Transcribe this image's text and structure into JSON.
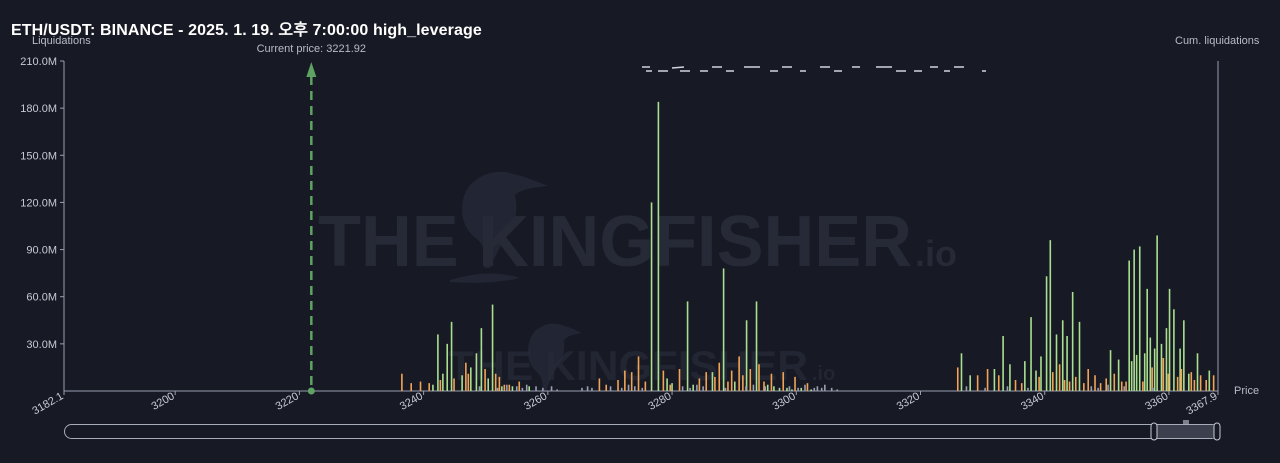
{
  "header": {
    "title": "ETH/USDT: BINANCE - 2025. 1. 19. 오후 7:00:00 high_leverage"
  },
  "watermark": {
    "brand": "THE KINGFISHER",
    "suffix": ".io"
  },
  "colors": {
    "background": "#171924",
    "long_bar": "#a9e08f",
    "short_bar": "#f2a454",
    "current_price_line": "#5fa363",
    "axis": "#9a9fb0"
  },
  "chart_data": {
    "type": "bar",
    "ylabel": "Liquidations",
    "y2label": "Cum. liquidations",
    "xlabel": "Price",
    "xlim": [
      3182.1,
      3367.9
    ],
    "ylim": [
      0,
      210
    ],
    "y_unit": "M",
    "y_ticks": [
      "210.0M",
      "180.0M",
      "150.0M",
      "120.0M",
      "90.0M",
      "60.0M",
      "30.0M"
    ],
    "y_tick_values": [
      210,
      180,
      150,
      120,
      90,
      60,
      30
    ],
    "x_ticks": [
      "3182.1",
      "3200",
      "3220",
      "3240",
      "3260",
      "3280",
      "3300",
      "3320",
      "3340",
      "3360",
      "3367.9"
    ],
    "x_tick_values": [
      3182.1,
      3200,
      3220,
      3240,
      3260,
      3280,
      3300,
      3320,
      3340,
      3360,
      3367.9
    ],
    "current_price_label": "Current price: 3221.92",
    "current_price": 3221.92,
    "grid": false,
    "series": [
      {
        "color": "#a9e08f",
        "x": [
          3241.5,
          3242.3,
          3243.1,
          3243.8,
          3244.5,
          3246.2,
          3247.6,
          3248.5,
          3249.3,
          3250.4,
          3251.1,
          3252.6,
          3254.3,
          3257.0,
          3276.7,
          3277.8,
          3279.2,
          3280.0,
          3282.5,
          3283.4,
          3286.5,
          3288.3,
          3290.1,
          3292.0,
          3293.6,
          3295.4,
          3296.4,
          3297.3,
          3298.5,
          3299.3,
          3300.8,
          3302.4,
          3326.6,
          3328.0,
          3331.9,
          3333.3,
          3334.4,
          3336.8,
          3337.8,
          3338.6,
          3339.4,
          3340.3,
          3340.9,
          3341.9,
          3342.9,
          3343.6,
          3344.5,
          3345.6,
          3350.6,
          3351.9,
          3353.6,
          3354.0,
          3354.4,
          3354.8,
          3355.3,
          3356.1,
          3356.5,
          3357.0,
          3357.7,
          3358.1,
          3358.8,
          3359.6,
          3360.1,
          3360.8,
          3361.8,
          3362.4,
          3363.2,
          3364.6,
          3366.5
        ],
        "values": [
          4,
          36,
          11,
          30,
          44,
          10,
          15,
          24,
          40,
          8,
          55,
          3,
          3,
          3,
          120,
          184,
          8,
          5,
          57,
          4,
          12,
          78,
          6,
          45,
          57,
          4,
          3,
          2,
          2,
          1,
          2,
          1,
          24,
          10,
          14,
          35,
          17,
          19,
          47,
          13,
          22,
          73,
          96,
          36,
          45,
          35,
          63,
          44,
          26,
          20,
          83,
          19,
          90,
          23,
          92,
          24,
          65,
          34,
          27,
          99,
          30,
          40,
          65,
          52,
          27,
          45,
          11,
          24,
          13
        ]
      },
      {
        "color": "#f2a454",
        "x": [
          3236.5,
          3238.0,
          3239.5,
          3240.9,
          3242.7,
          3244.9,
          3246.8,
          3247.2,
          3249.9,
          3251.6,
          3252.2,
          3253.0,
          3253.8,
          3255.4,
          3268.3,
          3269.4,
          3271.3,
          3272.4,
          3273.5,
          3274.6,
          3275.7,
          3278.6,
          3279.7,
          3281.2,
          3284.4,
          3285.5,
          3286.9,
          3287.6,
          3289.0,
          3289.6,
          3290.8,
          3291.4,
          3292.6,
          3294.0,
          3294.8,
          3296.0,
          3297.9,
          3299.8,
          3301.8,
          3326.0,
          3329.2,
          3330.8,
          3332.6,
          3335.3,
          3336.3,
          3339.1,
          3341.3,
          3342.4,
          3343.2,
          3344.0,
          3345.0,
          3346.3,
          3347.0,
          3348.1,
          3349.0,
          3349.9,
          3351.2,
          3352.4,
          3353.1,
          3355.8,
          3357.3,
          3359.1,
          3359.9,
          3361.4,
          3362.0,
          3363.6,
          3364.1,
          3365.1,
          3366.0,
          3367.2
        ],
        "values": [
          11,
          5,
          6,
          5,
          7,
          8,
          18,
          11,
          14,
          11,
          9,
          4,
          4,
          6,
          8,
          4,
          7,
          13,
          12,
          22,
          6,
          13,
          4,
          14,
          8,
          12,
          9,
          18,
          6,
          13,
          22,
          10,
          14,
          17,
          6,
          11,
          12,
          9,
          5,
          15,
          10,
          14,
          10,
          7,
          5,
          9,
          12,
          17,
          7,
          6,
          9,
          5,
          14,
          10,
          5,
          8,
          11,
          6,
          6,
          6,
          15,
          21,
          11,
          9,
          14,
          12,
          7,
          10,
          7,
          10
        ]
      },
      {
        "color": "#9aa0b0",
        "x": [
          3249.0,
          3251.9,
          3253.4,
          3255.0,
          3255.9,
          3256.6,
          3258.1,
          3259.2,
          3260.6,
          3261.5,
          3265.5,
          3266.4,
          3267.1,
          3270.1,
          3271.9,
          3273.0,
          3274.0,
          3275.2,
          3281.7,
          3282.9,
          3284.0,
          3285.0,
          3288.6,
          3291.9,
          3293.1,
          3295.0,
          3298.9,
          3300.3,
          3301.4,
          3302.9,
          3303.4,
          3304.1,
          3304.6,
          3305.7,
          3306.6,
          3327.4,
          3330.4,
          3334.0,
          3337.3,
          3347.5,
          3348.6,
          3350.2,
          3352.8,
          3357.4
        ],
        "values": [
          3,
          2,
          4,
          3,
          2,
          4,
          3,
          2,
          3,
          1,
          2,
          3,
          2,
          3,
          2,
          4,
          3,
          2,
          3,
          2,
          4,
          3,
          2,
          3,
          4,
          3,
          3,
          2,
          4,
          2,
          3,
          2,
          4,
          2,
          1,
          3,
          2,
          3,
          2,
          3,
          2,
          4,
          3,
          2
        ]
      }
    ]
  }
}
